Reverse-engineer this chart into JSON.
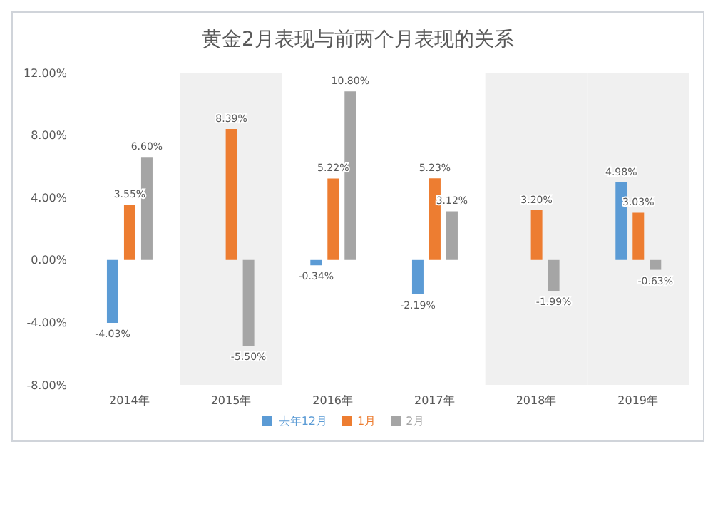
{
  "chart_data": {
    "type": "bar",
    "title": "黄金2月表现与前两个月表现的关系",
    "categories": [
      "2014年",
      "2015年",
      "2016年",
      "2017年",
      "2018年",
      "2019年"
    ],
    "series": [
      {
        "name": "去年12月",
        "color": "#5b9bd5",
        "values": [
          -4.03,
          null,
          -0.34,
          -2.19,
          null,
          4.98
        ],
        "value_labels": [
          "-4.03%",
          null,
          "-0.34%",
          "-2.19%",
          null,
          "4.98%"
        ]
      },
      {
        "name": "1月",
        "color": "#ed7d31",
        "values": [
          3.55,
          8.39,
          5.22,
          5.23,
          3.2,
          3.03
        ],
        "value_labels": [
          "3.55%",
          "8.39%",
          "5.22%",
          "5.23%",
          "3.20%",
          "3.03%"
        ]
      },
      {
        "name": "2月",
        "color": "#a5a5a5",
        "values": [
          6.6,
          -5.5,
          10.8,
          3.12,
          -1.99,
          -0.63
        ],
        "value_labels": [
          "6.60%",
          "-5.50%",
          "10.80%",
          "3.12%",
          "-1.99%",
          "-0.63%"
        ]
      }
    ],
    "ylim": [
      -8,
      12
    ],
    "yticks": [
      {
        "value": -8,
        "label": "-8.00%"
      },
      {
        "value": -4,
        "label": "-4.00%"
      },
      {
        "value": 0,
        "label": "0.00%"
      },
      {
        "value": 4,
        "label": "4.00%"
      },
      {
        "value": 8,
        "label": "8.00%"
      },
      {
        "value": 12,
        "label": "12.00%"
      }
    ],
    "bands": [
      {
        "axis": "x",
        "from": "2015年",
        "to": "2015年",
        "color": "#f0f0f0"
      },
      {
        "axis": "x",
        "from": "2018年",
        "to": "2018年",
        "color": "#f0f0f0"
      },
      {
        "axis": "x",
        "from": "2019年",
        "to": "2019年",
        "color": "#f0f0f0"
      }
    ],
    "grid": false,
    "legend": "bottom"
  }
}
